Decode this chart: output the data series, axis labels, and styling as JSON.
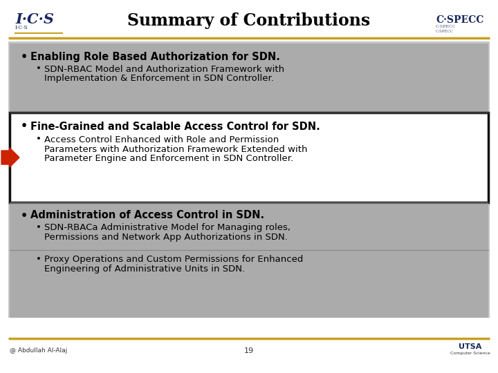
{
  "title": "Summary of Contributions",
  "title_fontsize": 17,
  "title_fontweight": "bold",
  "bg_color": "#ffffff",
  "header_line_color": "#c8a020",
  "footer_line_color": "#c8a020",
  "gray_box_color": "#999999",
  "white_box_color": "#ffffff",
  "white_box_border": "#111111",
  "arrow_color": "#cc2200",
  "text_color": "#000000",
  "footer_text": "@ Abdullah Al-Alaj",
  "page_number": "19",
  "ics_color": "#1a2a5e",
  "cspecc_color": "#1a2a5e",
  "utsa_color": "#1a2a5e",
  "bullet1_bold": "Enabling Role Based Authorization for SDN.",
  "bullet1_sub1": "SDN-RBAC Model and Authorization Framework with",
  "bullet1_sub2": "Implementation & Enforcement in SDN Controller.",
  "bullet2_bold": "Fine-Grained and Scalable Access Control for SDN.",
  "bullet2_sub1": "Access Control Enhanced with Role and Permission",
  "bullet2_sub2": "Parameters with Authorization Framework Extended with",
  "bullet2_sub3": "Parameter Engine and Enforcement in SDN Controller.",
  "bullet3_bold": "Administration of Access Control in SDN.",
  "bullet3_sub1a": "SDN-RBACa Administrative Model for Managing roles,",
  "bullet3_sub1b": "Permissions and Network App Authorizations in SDN.",
  "bullet3_sub2a": "Proxy Operations and Custom Permissions for Enhanced",
  "bullet3_sub2b": "Engineering of Administrative Units in SDN."
}
